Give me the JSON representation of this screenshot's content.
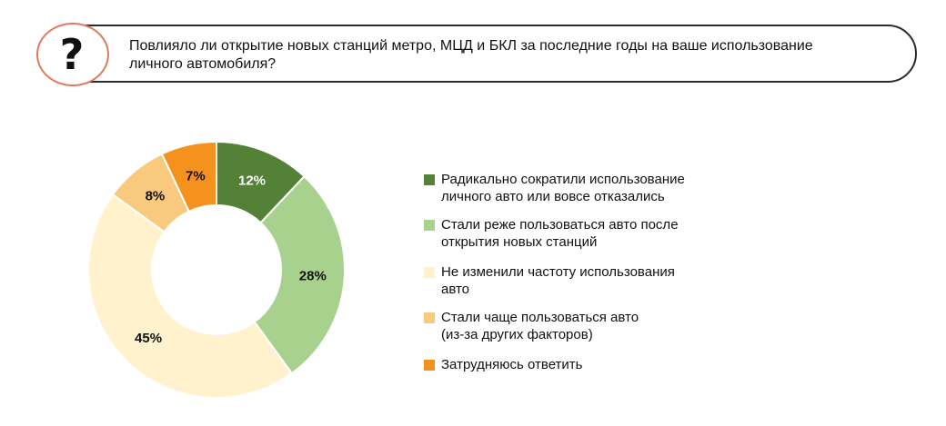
{
  "question": {
    "icon": "question-mark-icon",
    "symbol": "?",
    "text_line1": "Повлияло ли открытие новых станций метро, МЦД и БКЛ за последние годы на ваше использование",
    "text_line2": "личного автомобиля?"
  },
  "chart_data": {
    "type": "pie",
    "donut": true,
    "categories": [
      "Радикально сократили использование личного авто или вовсе отказались",
      "Стали реже пользоваться авто после открытия новых станций",
      "Не изменили частоту использования авто",
      "Стали чаще пользоваться авто (из-за других факторов)",
      "Затрудняюсь ответить"
    ],
    "values": [
      12,
      28,
      45,
      8,
      7
    ],
    "value_labels": [
      "12%",
      "28%",
      "45%",
      "8%",
      "7%"
    ],
    "colors": [
      "#538135",
      "#a9d18e",
      "#fff2cc",
      "#f9c97d",
      "#f5921e"
    ],
    "label_colors": [
      "#ffffff",
      "#111111",
      "#111111",
      "#111111",
      "#111111"
    ],
    "legend": [
      {
        "line1": "Радикально сократили использование",
        "line2": "личного авто или вовсе отказались"
      },
      {
        "line1": "Стали реже пользоваться авто после",
        "line2": "открытия новых станций"
      },
      {
        "line1": "Не изменили частоту использования",
        "line2": "авто"
      },
      {
        "line1": "Стали чаще пользоваться авто",
        "line2": "(из-за других факторов)"
      },
      {
        "line1": "Затрудняюсь ответить",
        "line2": ""
      }
    ],
    "legend_placement": "right",
    "start_angle": "top, clockwise"
  }
}
